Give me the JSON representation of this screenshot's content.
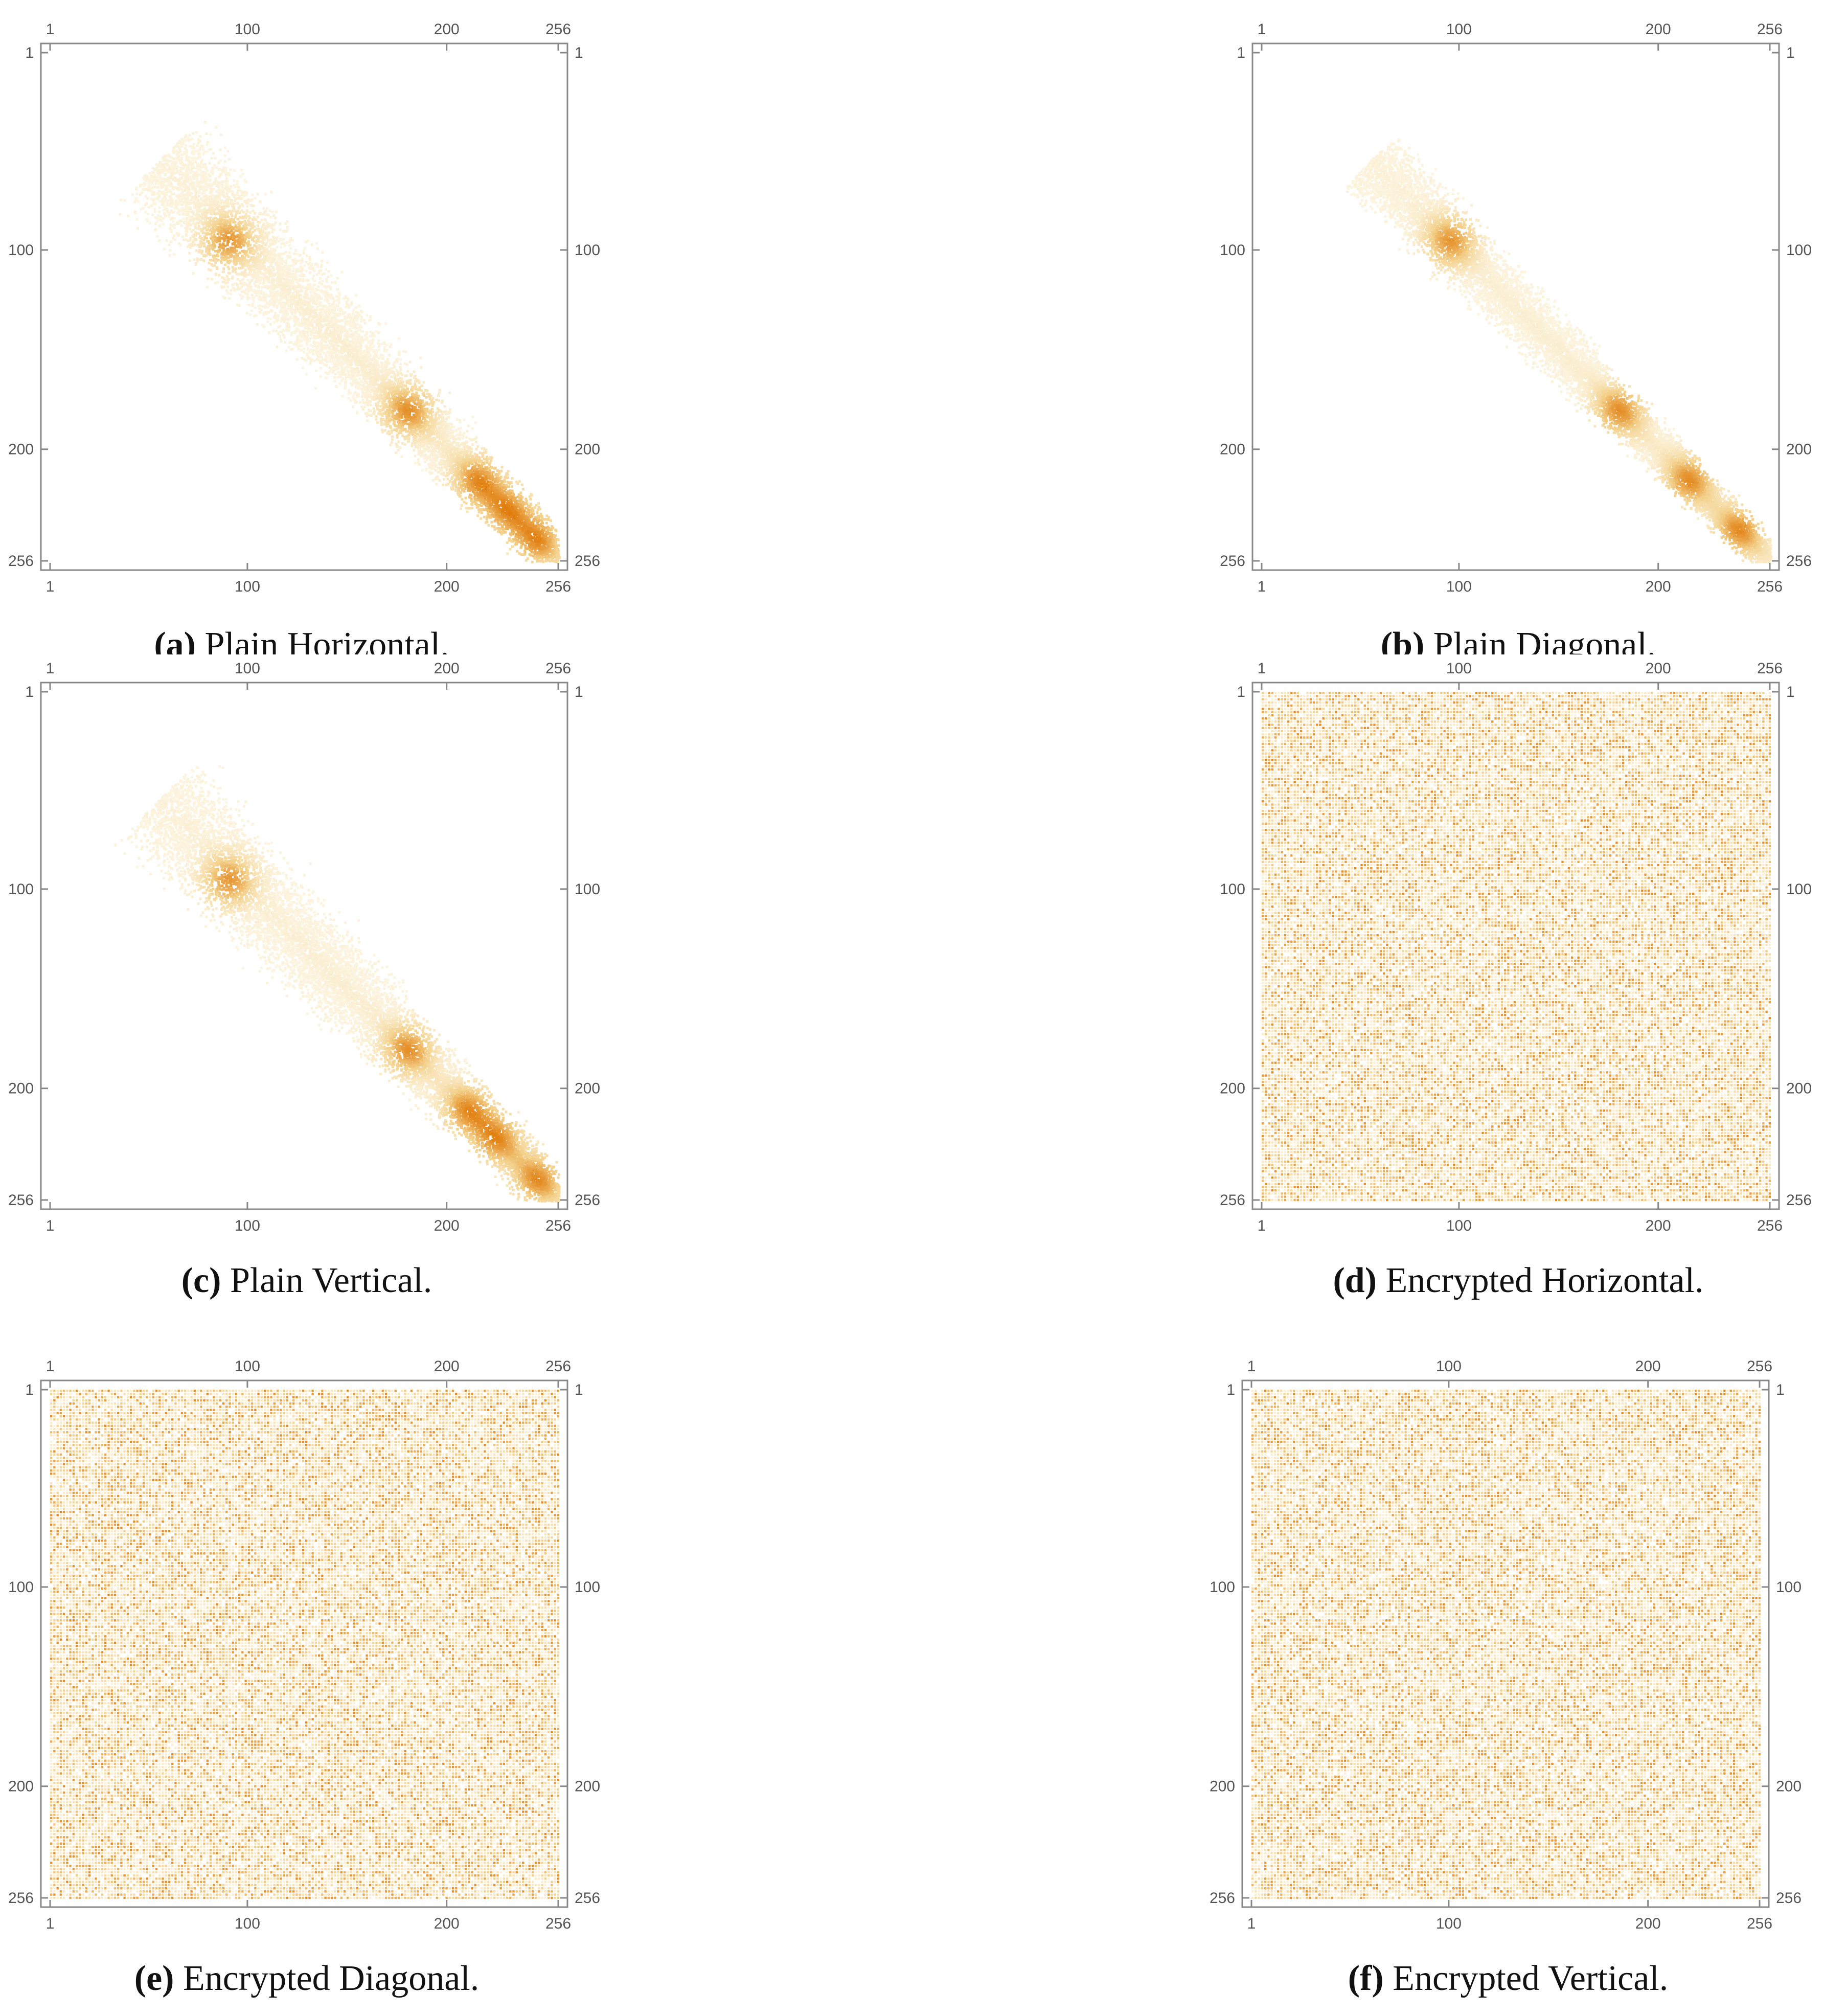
{
  "figure": {
    "panels": [
      {
        "id": "a",
        "caption_letter": "(a)",
        "caption_text": "Plain Horizontal."
      },
      {
        "id": "b",
        "caption_letter": "(b)",
        "caption_text": "Plain Diagonal."
      },
      {
        "id": "c",
        "caption_letter": "(c)",
        "caption_text": "Plain Vertical."
      },
      {
        "id": "d",
        "caption_letter": "(d)",
        "caption_text": "Encrypted Horizontal."
      },
      {
        "id": "e",
        "caption_letter": "(e)",
        "caption_text": "Encrypted Diagonal."
      },
      {
        "id": "f",
        "caption_letter": "(f)",
        "caption_text": "Encrypted Vertical."
      }
    ]
  },
  "colors": {
    "low": "#fdf7e6",
    "mid": "#f3d08a",
    "high": "#e07b0a",
    "frame": "#888888",
    "tick_text": "#555555"
  },
  "chart_data": [
    {
      "panel": "a",
      "type": "heatmap",
      "pattern": "correlated",
      "title": "",
      "xlabel": "",
      "ylabel": "",
      "xlim": [
        1,
        256
      ],
      "ylim": [
        1,
        256
      ],
      "ticks": [
        1,
        100,
        200,
        256
      ],
      "tick_labels": [
        "1",
        "100",
        "200",
        "256"
      ],
      "hotspots": [
        [
          90,
          95
        ],
        [
          180,
          180
        ],
        [
          215,
          215
        ],
        [
          230,
          230
        ],
        [
          245,
          245
        ]
      ],
      "spread": 28
    },
    {
      "panel": "b",
      "type": "heatmap",
      "pattern": "correlated",
      "title": "",
      "xlabel": "",
      "ylabel": "",
      "xlim": [
        1,
        256
      ],
      "ylim": [
        1,
        256
      ],
      "ticks": [
        1,
        100,
        200,
        256
      ],
      "tick_labels": [
        "1",
        "100",
        "200",
        "256"
      ],
      "hotspots": [
        [
          95,
          95
        ],
        [
          180,
          180
        ],
        [
          215,
          215
        ],
        [
          240,
          240
        ]
      ],
      "spread": 18
    },
    {
      "panel": "c",
      "type": "heatmap",
      "pattern": "correlated",
      "title": "",
      "xlabel": "",
      "ylabel": "",
      "xlim": [
        1,
        256
      ],
      "ylim": [
        1,
        256
      ],
      "ticks": [
        1,
        100,
        200,
        256
      ],
      "tick_labels": [
        "1",
        "100",
        "200",
        "256"
      ],
      "hotspots": [
        [
          90,
          95
        ],
        [
          180,
          180
        ],
        [
          210,
          210
        ],
        [
          225,
          225
        ],
        [
          245,
          245
        ]
      ],
      "spread": 28
    },
    {
      "panel": "d",
      "type": "heatmap",
      "pattern": "uniform",
      "title": "",
      "xlabel": "",
      "ylabel": "",
      "xlim": [
        1,
        256
      ],
      "ylim": [
        1,
        256
      ],
      "ticks": [
        1,
        100,
        200,
        256
      ],
      "tick_labels": [
        "1",
        "100",
        "200",
        "256"
      ]
    },
    {
      "panel": "e",
      "type": "heatmap",
      "pattern": "uniform",
      "title": "",
      "xlabel": "",
      "ylabel": "",
      "xlim": [
        1,
        256
      ],
      "ylim": [
        1,
        256
      ],
      "ticks": [
        1,
        100,
        200,
        256
      ],
      "tick_labels": [
        "1",
        "100",
        "200",
        "256"
      ]
    },
    {
      "panel": "f",
      "type": "heatmap",
      "pattern": "uniform",
      "title": "",
      "xlabel": "",
      "ylabel": "",
      "xlim": [
        1,
        256
      ],
      "ylim": [
        1,
        256
      ],
      "ticks": [
        1,
        100,
        200,
        256
      ],
      "tick_labels": [
        "1",
        "100",
        "200",
        "256"
      ]
    }
  ]
}
